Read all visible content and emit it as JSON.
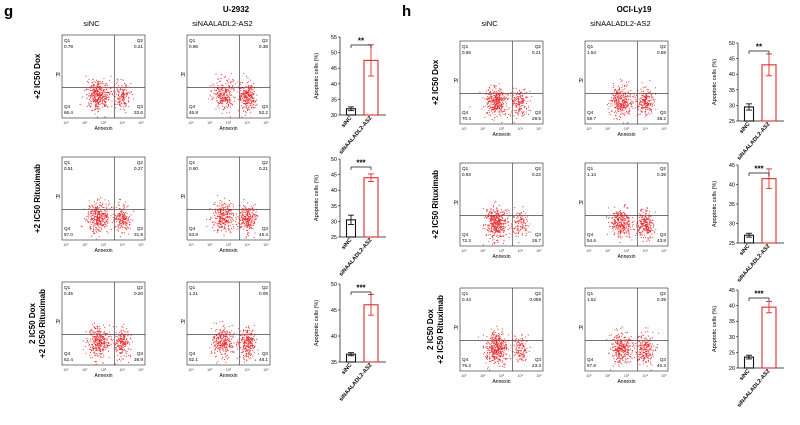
{
  "figure": {
    "panels": [
      {
        "letter": "g",
        "cell_line": "U-2932",
        "col_labels": [
          "siNC",
          "siNAALADL2-AS2"
        ],
        "rows": [
          {
            "row_label": [
              "+2 IC50 Dox"
            ],
            "plots": [
              {
                "q1": "0.79",
                "q2": "0.21",
                "q3": "32.6",
                "q4": "66.4"
              },
              {
                "q1": "0.96",
                "q2": "0.38",
                "q3": "52.2",
                "q4": "46.8"
              }
            ],
            "bar": {
              "ylim": [
                30,
                55
              ],
              "ticks": [
                "30",
                "35",
                "40",
                "45",
                "50",
                "55"
              ],
              "values": [
                32,
                47.5
              ],
              "errors": [
                0.6,
                5.0
              ],
              "sig": "**"
            }
          },
          {
            "row_label": [
              "+2 IC50 Rituximab"
            ],
            "plots": [
              {
                "q1": "0.51",
                "q2": "0.27",
                "q3": "31.9",
                "q4": "67.0"
              },
              {
                "q1": "0.60",
                "q2": "0.21",
                "q3": "45.4",
                "q4": "53.8"
              }
            ],
            "bar": {
              "ylim": [
                25,
                50
              ],
              "ticks": [
                "25",
                "30",
                "35",
                "40",
                "45",
                "50"
              ],
              "values": [
                30.5,
                44
              ],
              "errors": [
                1.5,
                1.2
              ],
              "sig": "***"
            }
          },
          {
            "row_label": [
              "2 IC50 Dox",
              "+2 IC50 Rituximab"
            ],
            "plots": [
              {
                "q1": "0.45",
                "q2": "0.20",
                "q3": "36.9",
                "q4": "62.4"
              },
              {
                "q1": "1.21",
                "q2": "0.08",
                "q3": "46.1",
                "q4": "52.1"
              }
            ],
            "bar": {
              "ylim": [
                35,
                50
              ],
              "ticks": [
                "35",
                "40",
                "45",
                "50"
              ],
              "values": [
                36.5,
                46
              ],
              "errors": [
                0.3,
                2.0
              ],
              "sig": "***"
            }
          }
        ]
      },
      {
        "letter": "h",
        "cell_line": "OCI-Ly19",
        "col_labels": [
          "siNC",
          "siNAALADL2-AS2"
        ],
        "rows": [
          {
            "row_label": [
              "+2 IC50 Dox"
            ],
            "plots": [
              {
                "q1": "0.66",
                "q2": "0.21",
                "q3": "29.5",
                "q4": "70.4"
              },
              {
                "q1": "1.54",
                "q2": "0.59",
                "q3": "38.2",
                "q4": "59.7"
              }
            ],
            "bar": {
              "ylim": [
                25,
                50
              ],
              "ticks": [
                "25",
                "30",
                "35",
                "40",
                "45",
                "50"
              ],
              "values": [
                29.5,
                43
              ],
              "errors": [
                1.0,
                3.5
              ],
              "sig": "**"
            }
          },
          {
            "row_label": [
              "+2 IC50 Rituximab"
            ],
            "plots": [
              {
                "q1": "0.93",
                "q2": "0.22",
                "q3": "26.7",
                "q4": "72.2"
              },
              {
                "q1": "1.14",
                "q2": "0.39",
                "q3": "43.8",
                "q4": "54.6"
              }
            ],
            "bar": {
              "ylim": [
                25,
                45
              ],
              "ticks": [
                "25",
                "30",
                "35",
                "40",
                "45"
              ],
              "values": [
                27,
                41.5
              ],
              "errors": [
                0.5,
                2.5
              ],
              "sig": "***"
            }
          },
          {
            "row_label": [
              "2 IC50 Dox",
              "+2 IC50 Rituximab"
            ],
            "plots": [
              {
                "q1": "0.44",
                "q2": "0.059",
                "q3": "23.3",
                "q4": "76.2"
              },
              {
                "q1": "1.52",
                "q2": "0.39",
                "q3": "40.3",
                "q4": "57.8"
              }
            ],
            "bar": {
              "ylim": [
                20,
                45
              ],
              "ticks": [
                "20",
                "25",
                "30",
                "35",
                "40",
                "45"
              ],
              "values": [
                23.5,
                39.5
              ],
              "errors": [
                0.6,
                1.8
              ],
              "sig": "***"
            }
          }
        ]
      }
    ],
    "axis": {
      "x_label": "Annexin",
      "y_label": "PI",
      "bar_ylabel": "Apoptotic cells (%)",
      "bar_categories": [
        "siNC",
        "siNAALADL2-AS2"
      ],
      "quadrant_labels": [
        "Q1",
        "Q2",
        "Q3",
        "Q4"
      ],
      "x_ticks": [
        "10¹",
        "10²",
        "10³",
        "10⁴",
        "10⁵"
      ]
    },
    "colors": {
      "dots": "#e8262a",
      "bar_outline_nc": "#111111",
      "bar_outline_si": "#e32b2b"
    }
  }
}
